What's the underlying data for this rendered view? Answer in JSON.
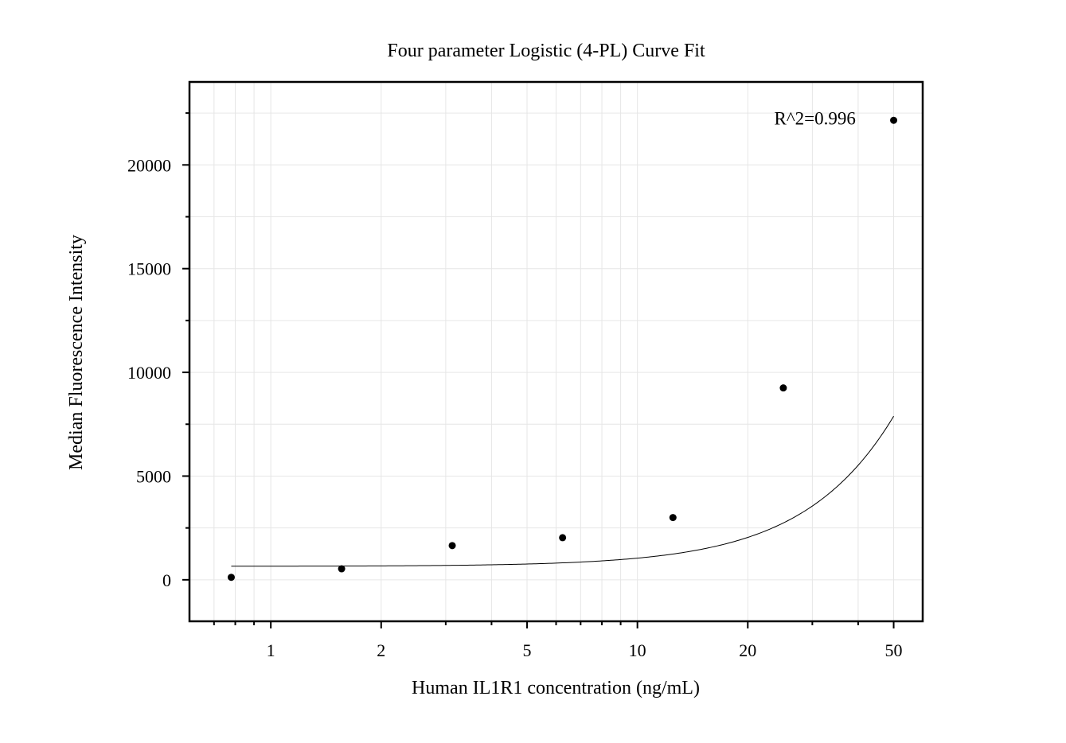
{
  "chart_data": {
    "type": "scatter",
    "title": "Four parameter Logistic (4-PL) Curve Fit",
    "xlabel": "Human IL1R1 concentration (ng/mL)",
    "ylabel": "Median Fluorescence Intensity",
    "x_scale": "log",
    "xlim": [
      0.6,
      60
    ],
    "ylim": [
      -2000,
      24000
    ],
    "x_ticks": [
      1,
      2,
      5,
      10,
      20,
      50
    ],
    "x_tick_labels": [
      "1",
      "2",
      "5",
      "10",
      "20",
      "50"
    ],
    "x_minor_ticks": [
      0.7,
      0.8,
      0.9,
      3,
      4,
      6,
      7,
      8,
      9,
      30,
      40
    ],
    "y_ticks": [
      0,
      5000,
      10000,
      15000,
      20000
    ],
    "y_tick_labels": [
      "0",
      "5000",
      "10000",
      "15000",
      "20000"
    ],
    "y_minor_ticks": [
      -2500,
      2500,
      7500,
      12500,
      17500,
      22500
    ],
    "grid": true,
    "legend": "none",
    "series": [
      {
        "type": "scatter",
        "x": [
          0.78,
          1.56,
          3.125,
          6.25,
          12.5,
          25,
          50
        ],
        "y": [
          120,
          530,
          1650,
          2030,
          3000,
          9250,
          22150
        ]
      },
      {
        "type": "line",
        "model": "4PL",
        "params": {
          "A": 650,
          "D": 200000,
          "C": 300,
          "B": 1.83
        },
        "x_range": [
          0.78,
          50
        ]
      }
    ],
    "annotations": [
      {
        "text": "R^2=0.996",
        "x": 30.5,
        "y": 22250
      }
    ],
    "colors": {
      "points": "#000000",
      "line": "#000000",
      "grid": "#e6e6e6"
    }
  }
}
